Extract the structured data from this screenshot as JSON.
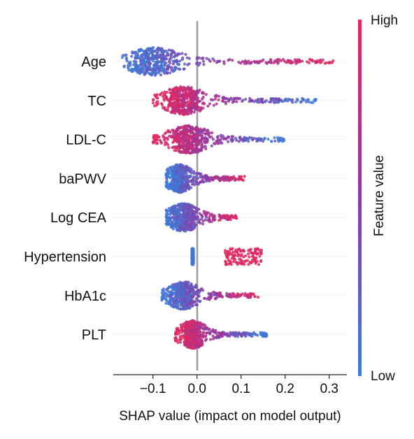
{
  "chart_data": {
    "type": "scatter",
    "subtype": "shap-beeswarm",
    "title": "",
    "xlabel": "SHAP value (impact on model output)",
    "xlim": [
      -0.19,
      0.34
    ],
    "xticks": [
      {
        "value": -0.1,
        "label": "−0.1"
      },
      {
        "value": 0.0,
        "label": "0.0"
      },
      {
        "value": 0.1,
        "label": "0.1"
      },
      {
        "value": 0.2,
        "label": "0.2"
      },
      {
        "value": 0.3,
        "label": "0.3"
      }
    ],
    "features": [
      {
        "name": "Age",
        "min": -0.17,
        "max": 0.31,
        "peak": -0.1,
        "spread": 0.05,
        "color_gradient": "low-left-high-right"
      },
      {
        "name": "TC",
        "min": -0.1,
        "max": 0.27,
        "peak": -0.03,
        "spread": 0.04,
        "color_gradient": "high-left-low-right"
      },
      {
        "name": "LDL-C",
        "min": -0.1,
        "max": 0.2,
        "peak": -0.02,
        "spread": 0.04,
        "color_gradient": "high-left-low-right"
      },
      {
        "name": "baPWV",
        "min": -0.07,
        "max": 0.11,
        "peak": -0.04,
        "spread": 0.025,
        "color_gradient": "low-left-high-right"
      },
      {
        "name": "Log CEA",
        "min": -0.07,
        "max": 0.09,
        "peak": -0.03,
        "spread": 0.03,
        "color_gradient": "low-left-high-right"
      },
      {
        "name": "Hypertension",
        "min": -0.01,
        "max": 0.15,
        "peak": -0.01,
        "spread": 0.005,
        "color_gradient": "binary"
      },
      {
        "name": "HbA1c",
        "min": -0.08,
        "max": 0.14,
        "peak": -0.03,
        "spread": 0.03,
        "color_gradient": "low-left-high-right"
      },
      {
        "name": "PLT",
        "min": -0.05,
        "max": 0.16,
        "peak": -0.01,
        "spread": 0.025,
        "color_gradient": "high-left-low-right"
      }
    ],
    "colorbar": {
      "label": "Feature value",
      "high_label": "High",
      "low_label": "Low",
      "high_color": "#e8265a",
      "low_color": "#3b7dd8"
    },
    "grid": false,
    "zero_line": true
  }
}
